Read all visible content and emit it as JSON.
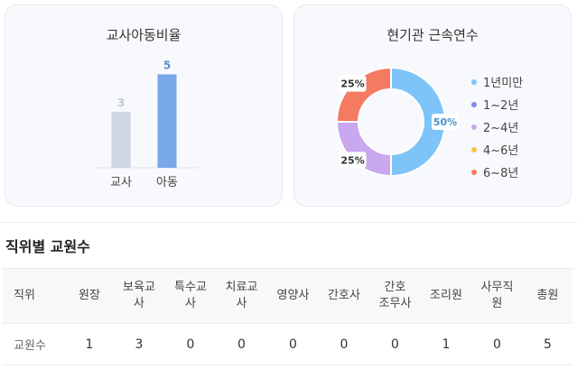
{
  "ratio_card": {
    "title": "교사아동비율",
    "colors": {
      "teacher": "#d0d5e3",
      "child": "#78a8e8",
      "teacher_label": "#c4c8d2",
      "child_label": "#5b8fd6"
    }
  },
  "tenure_card": {
    "title": "현기관 근속연수"
  },
  "staff_section": {
    "title": "직위별 교원수"
  },
  "chart_data": [
    {
      "type": "bar",
      "title": "교사아동비율",
      "categories": [
        "교사",
        "아동"
      ],
      "values": [
        3,
        5
      ],
      "data_labels": [
        "3",
        "5"
      ],
      "colors": [
        "#d0d5e3",
        "#78a8e8"
      ],
      "ylim": [
        0,
        5.6
      ],
      "grid": false
    },
    {
      "type": "pie",
      "title": "현기관 근속연수",
      "categories": [
        "1년미만",
        "1~2년",
        "2~4년",
        "4~6년",
        "6~8년"
      ],
      "values": [
        50,
        0,
        25,
        0,
        25
      ],
      "data_labels": [
        "50%",
        "",
        "25%",
        "",
        "25%"
      ],
      "colors": [
        "#7ec4f8",
        "#7b8de6",
        "#c9a8f0",
        "#f5c542",
        "#f47a62"
      ],
      "legend_position": "right"
    }
  ],
  "staff_table": {
    "headers": [
      "직위",
      "원장",
      "보육교\n사",
      "특수교\n사",
      "치료교\n사",
      "영양사",
      "간호사",
      "간호\n조무사",
      "조리원",
      "사무직\n원",
      "총원"
    ],
    "row_label": "교원수",
    "values": [
      "1",
      "3",
      "0",
      "0",
      "0",
      "0",
      "0",
      "1",
      "0",
      "5"
    ]
  }
}
